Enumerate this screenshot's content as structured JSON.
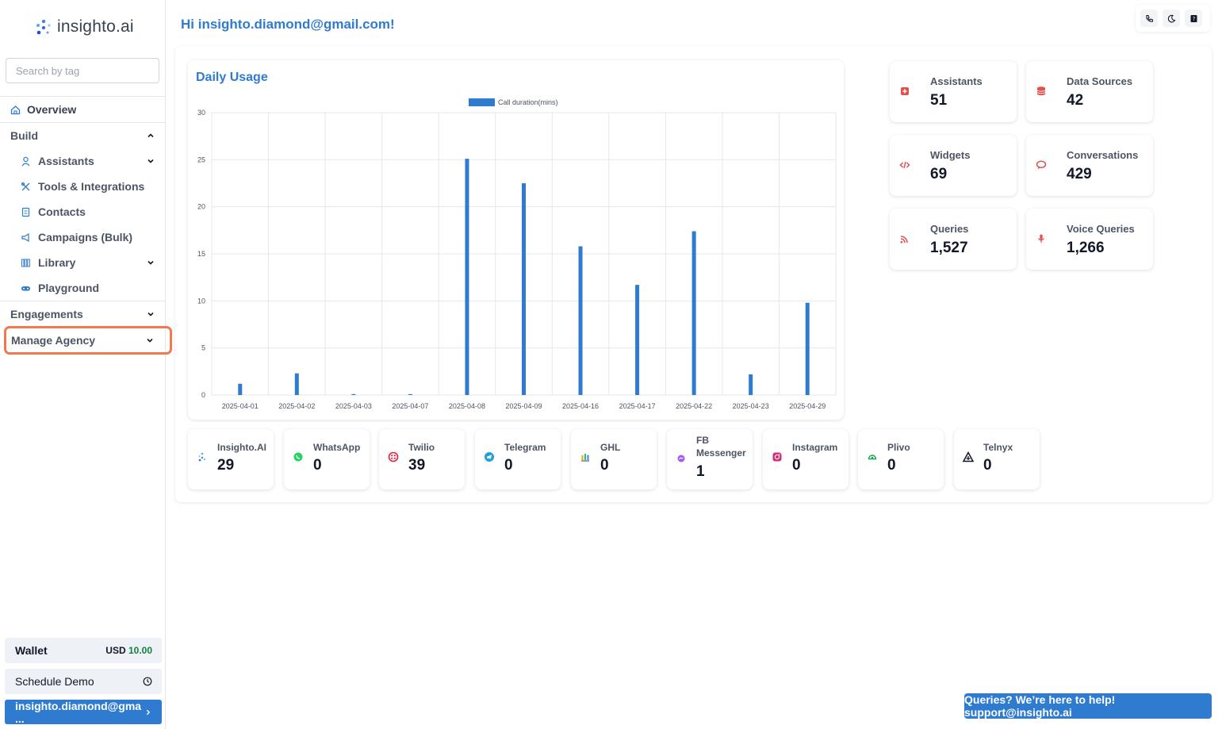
{
  "app": {
    "logo_text": "insighto.ai"
  },
  "search": {
    "placeholder": "Search by tag"
  },
  "nav": {
    "overview": "Overview",
    "build": "Build",
    "items": [
      {
        "label": "Assistants"
      },
      {
        "label": "Tools & Integrations"
      },
      {
        "label": "Contacts"
      },
      {
        "label": "Campaigns (Bulk)"
      },
      {
        "label": "Library"
      },
      {
        "label": "Playground"
      }
    ],
    "engagements": "Engagements",
    "manage_agency": "Manage Agency"
  },
  "wallet": {
    "label": "Wallet",
    "currency": "USD",
    "amount": "10.00"
  },
  "schedule_demo": "Schedule Demo",
  "user_button": "insighto.diamond@gma ...",
  "greeting": "Hi insighto.diamond@gmail.com!",
  "chart_title": "Daily Usage",
  "chart_data": {
    "type": "bar",
    "categories": [
      "2025-04-01",
      "2025-04-02",
      "2025-04-03",
      "2025-04-07",
      "2025-04-08",
      "2025-04-09",
      "2025-04-16",
      "2025-04-17",
      "2025-04-22",
      "2025-04-23",
      "2025-04-29"
    ],
    "series": [
      {
        "name": "Call duration(mins)",
        "values": [
          1.2,
          2.3,
          0.1,
          0.1,
          25.1,
          22.5,
          15.8,
          11.7,
          17.4,
          2.2,
          9.8
        ]
      }
    ],
    "ylim": [
      0,
      30
    ],
    "yticks": [
      0,
      5,
      10,
      15,
      20,
      25,
      30
    ],
    "grid": true,
    "legend": "top-center",
    "color": "#2e7bd0"
  },
  "stats": [
    {
      "label": "Assistants",
      "value": "51",
      "icon": "assistant-icon",
      "color": "#e05252"
    },
    {
      "label": "Data Sources",
      "value": "42",
      "icon": "database-icon",
      "color": "#e05252"
    },
    {
      "label": "Widgets",
      "value": "69",
      "icon": "code-icon",
      "color": "#e05252"
    },
    {
      "label": "Conversations",
      "value": "429",
      "icon": "chat-bubble-icon",
      "color": "#e05252"
    },
    {
      "label": "Queries",
      "value": "1,527",
      "icon": "rss-icon",
      "color": "#e05252"
    },
    {
      "label": "Voice Queries",
      "value": "1,266",
      "icon": "microphone-icon",
      "color": "#e05252"
    }
  ],
  "channels": [
    {
      "label": "Insighto.AI",
      "value": "29",
      "icon": "insighto-icon"
    },
    {
      "label": "WhatsApp",
      "value": "0",
      "icon": "whatsapp-icon"
    },
    {
      "label": "Twilio",
      "value": "39",
      "icon": "twilio-icon"
    },
    {
      "label": "Telegram",
      "value": "0",
      "icon": "telegram-icon"
    },
    {
      "label": "GHL",
      "value": "0",
      "icon": "ghl-icon"
    },
    {
      "label": "FB Messenger",
      "value": "1",
      "icon": "messenger-icon"
    },
    {
      "label": "Instagram",
      "value": "0",
      "icon": "instagram-icon"
    },
    {
      "label": "Plivo",
      "value": "0",
      "icon": "plivo-icon"
    },
    {
      "label": "Telnyx",
      "value": "0",
      "icon": "telnyx-icon"
    }
  ],
  "help_banner": "Queries? We’re here to help! support@insighto.ai"
}
